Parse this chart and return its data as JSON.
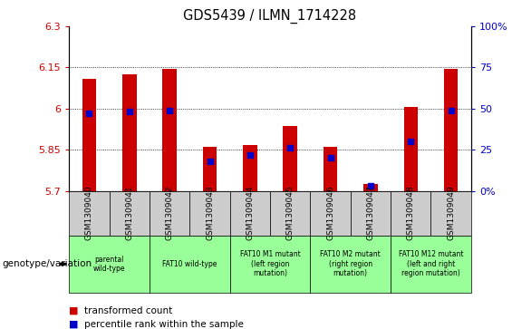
{
  "title": "GDS5439 / ILMN_1714228",
  "samples": [
    "GSM1309040",
    "GSM1309041",
    "GSM1309042",
    "GSM1309043",
    "GSM1309044",
    "GSM1309045",
    "GSM1309046",
    "GSM1309047",
    "GSM1309048",
    "GSM1309049"
  ],
  "transformed_counts": [
    6.11,
    6.125,
    6.145,
    5.862,
    5.867,
    5.935,
    5.862,
    5.725,
    6.005,
    6.145
  ],
  "percentile_ranks": [
    47,
    48,
    49,
    18,
    22,
    26,
    20,
    3,
    30,
    49
  ],
  "ylim_left": [
    5.7,
    6.3
  ],
  "ylim_right": [
    0,
    100
  ],
  "yticks_left": [
    5.7,
    5.85,
    6.0,
    6.15,
    6.3
  ],
  "yticks_right": [
    0,
    25,
    50,
    75,
    100
  ],
  "ytick_labels_left": [
    "5.7",
    "5.85",
    "6",
    "6.15",
    "6.3"
  ],
  "ytick_labels_right": [
    "0%",
    "25",
    "50",
    "75",
    "100%"
  ],
  "bar_color": "#cc0000",
  "dot_color": "#0000cc",
  "bar_width": 0.35,
  "genotype_groups": [
    {
      "label": "parental\nwild-type",
      "start": 0,
      "end": 2
    },
    {
      "label": "FAT10 wild-type",
      "start": 2,
      "end": 4
    },
    {
      "label": "FAT10 M1 mutant\n(left region\nmutation)",
      "start": 4,
      "end": 6
    },
    {
      "label": "FAT10 M2 mutant\n(right region\nmutation)",
      "start": 6,
      "end": 8
    },
    {
      "label": "FAT10 M12 mutant\n(left and right\nregion mutation)",
      "start": 8,
      "end": 10
    }
  ],
  "legend_red_label": "transformed count",
  "legend_blue_label": "percentile rank within the sample",
  "genotype_label": "genotype/variation",
  "tick_color_left": "#cc0000",
  "tick_color_right": "#0000cc",
  "sample_box_color": "#cccccc",
  "genotype_box_color": "#99ff99"
}
